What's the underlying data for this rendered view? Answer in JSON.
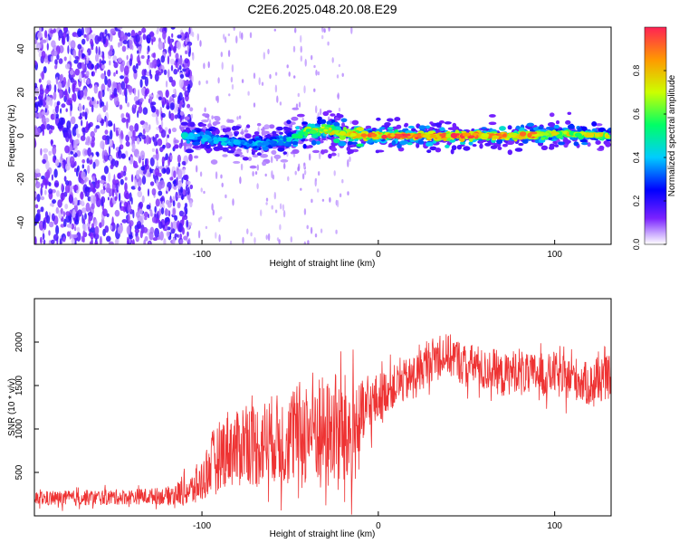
{
  "figure_title": "C2E6.2025.048.20.08.E29",
  "chart_data": [
    {
      "type": "heatmap",
      "title": "C2E6.2025.048.20.08.E29",
      "xlabel": "Height of straight line (km)",
      "ylabel": "Frequency (Hz)",
      "xlim": [
        -195,
        132
      ],
      "ylim": [
        -50,
        50
      ],
      "xticks": [
        -100,
        0,
        100
      ],
      "xtick_labels": [
        "-100",
        "0",
        "100"
      ],
      "yticks": [
        -40,
        -20,
        0,
        20,
        40
      ],
      "ytick_labels": [
        "-40",
        "-20",
        "0",
        "20",
        "40"
      ],
      "colorbar": {
        "label": "Normalized spectral amplitude",
        "range": [
          0,
          1
        ],
        "ticks": [
          0.0,
          0.2,
          0.4,
          0.6,
          0.8
        ],
        "tick_labels": [
          "0.0",
          "0.2",
          "0.4",
          "0.6",
          "0.8"
        ]
      },
      "ridge": {
        "x": [
          -110,
          -90,
          -70,
          -50,
          -40,
          -30,
          -20,
          -10,
          0,
          20,
          50,
          80,
          100,
          132
        ],
        "y": [
          0,
          -2,
          -4,
          -2,
          2,
          3,
          1,
          0,
          0,
          0,
          0,
          0,
          1,
          0
        ],
        "amplitude": [
          0.45,
          0.4,
          0.4,
          0.45,
          0.7,
          0.75,
          0.8,
          0.85,
          0.9,
          0.95,
          0.95,
          0.9,
          0.8,
          0.7
        ]
      },
      "background_noise": {
        "x_range": [
          -195,
          -110
        ],
        "amplitude": 0.2,
        "note": "broadband noise across all frequencies"
      }
    },
    {
      "type": "line",
      "xlabel": "Height of straight line (km)",
      "ylabel": "SNR (10 * v/v)",
      "xlim": [
        -195,
        132
      ],
      "ylim": [
        0,
        2500
      ],
      "xticks": [
        -100,
        0,
        100
      ],
      "xtick_labels": [
        "-100",
        "0",
        "100"
      ],
      "yticks": [
        500,
        1000,
        1500,
        2000
      ],
      "ytick_labels": [
        "500",
        "1000",
        "1500",
        "2000"
      ],
      "series": [
        {
          "name": "SNR",
          "color": "#ee3333",
          "x": [
            -195,
            -180,
            -160,
            -140,
            -120,
            -105,
            -100,
            -95,
            -90,
            -85,
            -80,
            -75,
            -70,
            -65,
            -60,
            -55,
            -50,
            -45,
            -40,
            -35,
            -30,
            -25,
            -20,
            -15,
            -10,
            -5,
            0,
            5,
            10,
            15,
            20,
            25,
            30,
            35,
            40,
            45,
            50,
            55,
            60,
            65,
            70,
            75,
            80,
            85,
            90,
            95,
            100,
            105,
            110,
            115,
            120,
            125,
            132
          ],
          "values": [
            200,
            200,
            210,
            220,
            230,
            300,
            400,
            600,
            700,
            800,
            750,
            900,
            800,
            850,
            900,
            850,
            900,
            950,
            1000,
            1050,
            900,
            1000,
            950,
            900,
            1100,
            1250,
            1350,
            1450,
            1500,
            1550,
            1600,
            1700,
            1800,
            1850,
            1850,
            1800,
            1700,
            1750,
            1650,
            1700,
            1600,
            1650,
            1700,
            1600,
            1650,
            1600,
            1650,
            1550,
            1600,
            1550,
            1500,
            1550,
            1600
          ],
          "spread": [
            80,
            90,
            90,
            90,
            100,
            200,
            250,
            350,
            400,
            450,
            450,
            500,
            500,
            500,
            500,
            550,
            550,
            600,
            650,
            700,
            650,
            650,
            700,
            700,
            450,
            350,
            300,
            250,
            250,
            250,
            250,
            250,
            250,
            250,
            250,
            250,
            250,
            250,
            250,
            250,
            250,
            250,
            250,
            250,
            250,
            250,
            250,
            250,
            250,
            250,
            250,
            250,
            250
          ]
        }
      ]
    }
  ]
}
